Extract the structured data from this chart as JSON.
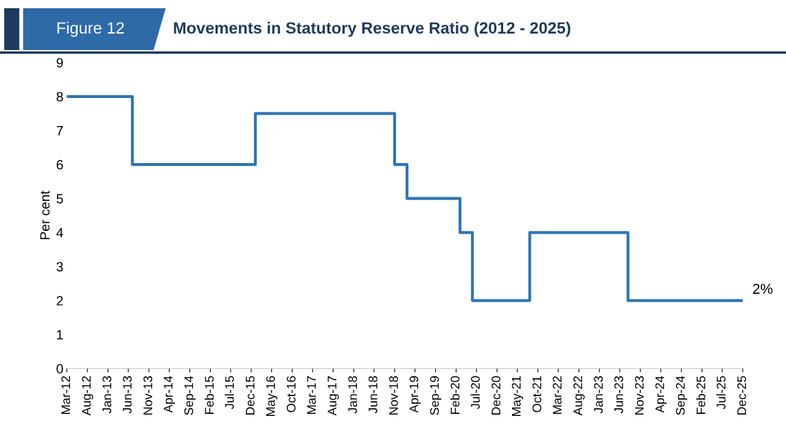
{
  "chart_data": {
    "type": "step",
    "title": "Movements in Statutory Reserve Ratio (2012 - 2025)",
    "ylabel": "Per cent",
    "annotations": [
      "Figure 12",
      {
        "text": "2%",
        "x": "2025-12",
        "y": 2
      }
    ],
    "series": [
      {
        "color": "#2e75b6",
        "x": [
          "2012-03",
          "2013-07",
          "2016-01",
          "2018-11",
          "2019-02",
          "2020-03",
          "2020-06",
          "2021-08",
          "2023-08",
          "2025-12"
        ],
        "values": [
          8,
          6,
          7.5,
          6,
          5,
          4,
          2,
          4,
          2,
          2
        ]
      }
    ],
    "xlim": [
      "2012-03",
      "2025-12"
    ],
    "xticks": [
      {
        "value": "2012-03",
        "label": "Mar-12"
      },
      {
        "value": "2012-08",
        "label": "Aug-12"
      },
      {
        "value": "2013-01",
        "label": "Jan-13"
      },
      {
        "value": "2013-06",
        "label": "Jun-13"
      },
      {
        "value": "2013-11",
        "label": "Nov-13"
      },
      {
        "value": "2014-04",
        "label": "Apr-14"
      },
      {
        "value": "2014-09",
        "label": "Sep-14"
      },
      {
        "value": "2015-02",
        "label": "Feb-15"
      },
      {
        "value": "2015-07",
        "label": "Jul-15"
      },
      {
        "value": "2015-12",
        "label": "Dec-15"
      },
      {
        "value": "2016-05",
        "label": "May-16"
      },
      {
        "value": "2016-10",
        "label": "Oct-16"
      },
      {
        "value": "2017-03",
        "label": "Mar-17"
      },
      {
        "value": "2017-08",
        "label": "Aug-17"
      },
      {
        "value": "2018-01",
        "label": "Jan-18"
      },
      {
        "value": "2018-06",
        "label": "Jun-18"
      },
      {
        "value": "2018-11",
        "label": "Nov-18"
      },
      {
        "value": "2019-04",
        "label": "Apr-19"
      },
      {
        "value": "2019-09",
        "label": "Sep-19"
      },
      {
        "value": "2020-02",
        "label": "Feb-20"
      },
      {
        "value": "2020-07",
        "label": "Jul-20"
      },
      {
        "value": "2020-12",
        "label": "Dec-20"
      },
      {
        "value": "2021-05",
        "label": "May-21"
      },
      {
        "value": "2021-10",
        "label": "Oct-21"
      },
      {
        "value": "2022-03",
        "label": "Mar-22"
      },
      {
        "value": "2022-08",
        "label": "Aug-22"
      },
      {
        "value": "2023-01",
        "label": "Jan-23"
      },
      {
        "value": "2023-06",
        "label": "Jun-23"
      },
      {
        "value": "2023-11",
        "label": "Nov-23"
      },
      {
        "value": "2024-04",
        "label": "Apr-24"
      },
      {
        "value": "2024-09",
        "label": "Sep-24"
      },
      {
        "value": "2025-02",
        "label": "Feb-25"
      },
      {
        "value": "2025-07",
        "label": "Jul-25"
      },
      {
        "value": "2025-12",
        "label": "Dec-25"
      }
    ],
    "ylim": [
      0,
      9
    ],
    "yticks": [
      0,
      1,
      2,
      3,
      4,
      5,
      6,
      7,
      8,
      9
    ],
    "grid": false,
    "marker": "none",
    "line_style": "solid"
  }
}
